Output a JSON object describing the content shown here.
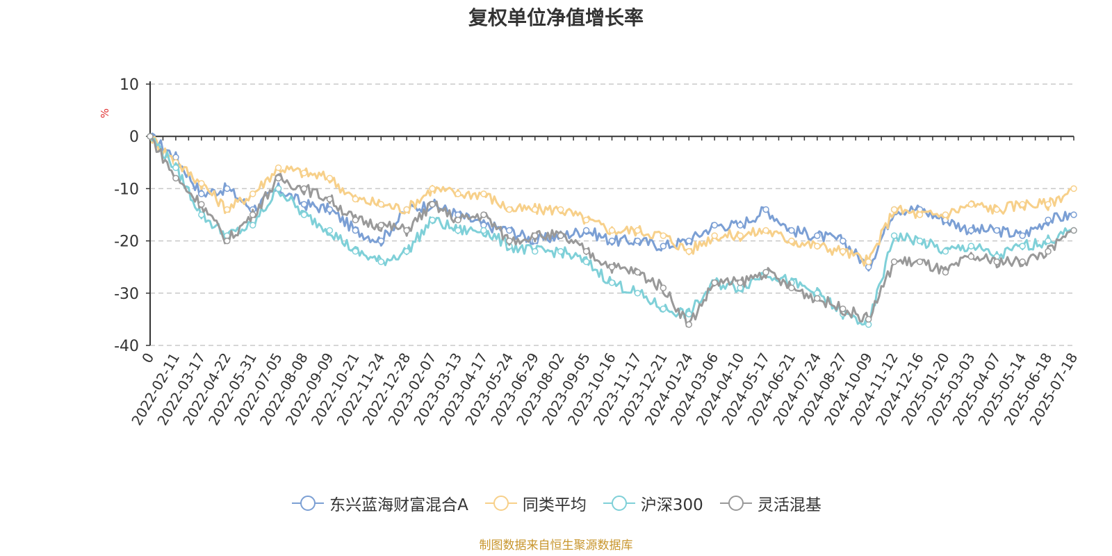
{
  "chart_data": {
    "type": "line",
    "title": "复权单位净值增长率",
    "ylabel": "%",
    "ylim": [
      -40,
      10
    ],
    "yticks": [
      10,
      0,
      -10,
      -20,
      -30,
      -40
    ],
    "categories": [
      "0",
      "2022-02-11",
      "2022-03-17",
      "2022-04-22",
      "2022-05-31",
      "2022-07-05",
      "2022-08-08",
      "2022-09-09",
      "2022-10-21",
      "2022-11-24",
      "2022-12-28",
      "2023-02-07",
      "2023-03-13",
      "2023-04-17",
      "2023-05-24",
      "2023-06-29",
      "2023-08-02",
      "2023-09-05",
      "2023-10-16",
      "2023-11-17",
      "2023-12-21",
      "2024-01-24",
      "2024-03-06",
      "2024-04-10",
      "2024-05-17",
      "2024-06-21",
      "2024-07-24",
      "2024-08-27",
      "2024-10-09",
      "2024-11-12",
      "2024-12-16",
      "2025-01-20",
      "2025-03-03",
      "2025-04-07",
      "2025-05-14",
      "2025-06-18",
      "2025-07-18"
    ],
    "grid": true,
    "legend_position": "bottom",
    "series": [
      {
        "name": "东兴蓝海财富混合A",
        "color": "#7b9fd4",
        "values": [
          0,
          -4,
          -11,
          -10,
          -14,
          -10,
          -13,
          -14,
          -18,
          -20,
          -14,
          -13,
          -15,
          -17,
          -18,
          -20,
          -19,
          -18,
          -20,
          -20,
          -21,
          -20,
          -17,
          -17,
          -14,
          -18,
          -19,
          -20,
          -25,
          -14,
          -14,
          -16,
          -18,
          -18,
          -19,
          -16,
          -15
        ]
      },
      {
        "name": "同类平均",
        "color": "#f7d08a",
        "values": [
          0,
          -5,
          -9,
          -14,
          -11,
          -6,
          -7,
          -8,
          -12,
          -13,
          -14,
          -10,
          -11,
          -11,
          -14,
          -14,
          -14,
          -16,
          -18,
          -18,
          -19,
          -22,
          -19,
          -19,
          -18,
          -20,
          -21,
          -22,
          -24,
          -14,
          -15,
          -15,
          -13,
          -14,
          -13,
          -13,
          -10
        ]
      },
      {
        "name": "沪深300",
        "color": "#7fd0d8",
        "values": [
          0,
          -6,
          -15,
          -19,
          -17,
          -10,
          -15,
          -18,
          -22,
          -24,
          -22,
          -16,
          -18,
          -18,
          -21,
          -22,
          -22,
          -24,
          -28,
          -30,
          -33,
          -34,
          -28,
          -29,
          -26,
          -28,
          -30,
          -34,
          -36,
          -19,
          -20,
          -22,
          -21,
          -23,
          -21,
          -20,
          -18
        ]
      },
      {
        "name": "灵活混基",
        "color": "#999999",
        "values": [
          0,
          -8,
          -13,
          -20,
          -15,
          -8,
          -10,
          -12,
          -16,
          -17,
          -18,
          -13,
          -16,
          -15,
          -20,
          -19,
          -19,
          -22,
          -25,
          -26,
          -29,
          -36,
          -28,
          -28,
          -26,
          -29,
          -31,
          -33,
          -35,
          -24,
          -24,
          -26,
          -23,
          -24,
          -24,
          -22,
          -18
        ]
      }
    ]
  },
  "source_note": "制图数据来自恒生聚源数据库"
}
